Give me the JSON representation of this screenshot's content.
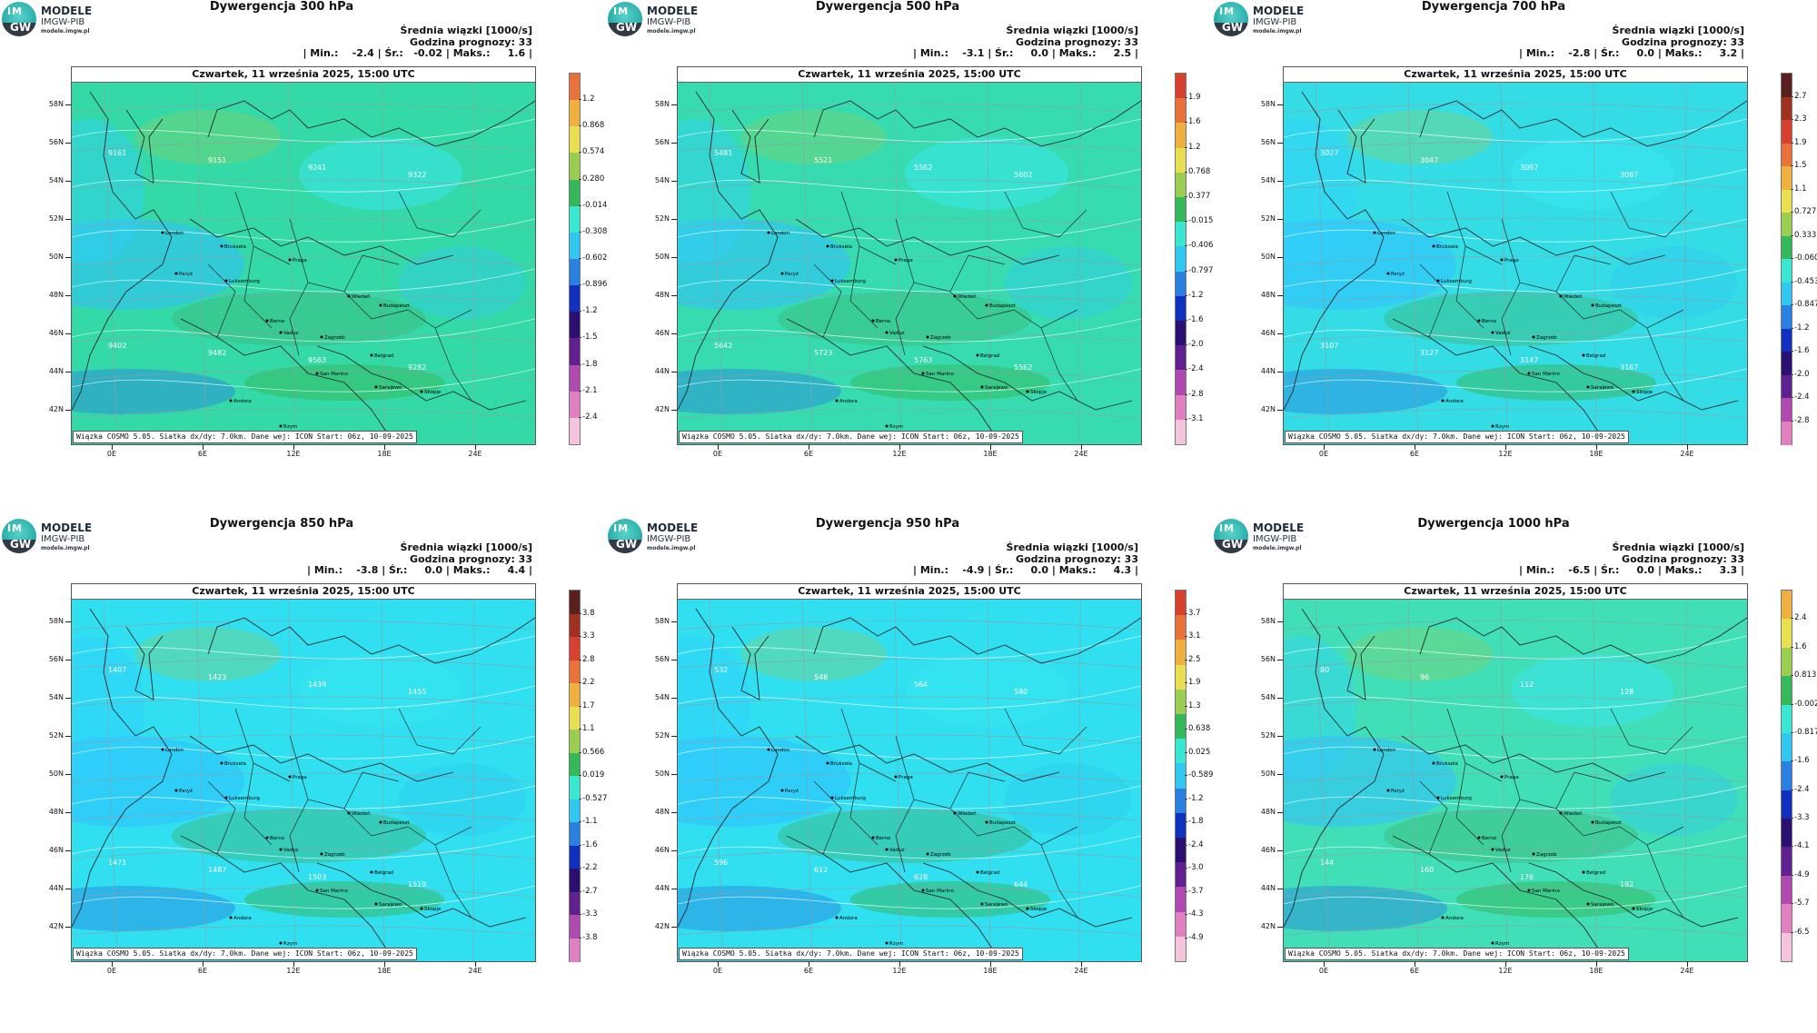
{
  "logo": {
    "title": "MODELE",
    "subtitle": "IMGW-PIB",
    "url": "modele.imgw.pl",
    "im": "IM",
    "gw": "GW"
  },
  "common": {
    "stats_header": "Średnia wiązki [1000/s]",
    "forecast_hour": "Godzina prognozy: 33",
    "date": "Czwartek, 11 września 2025, 15:00 UTC",
    "footer": "Wiązka COSMO 5.05. Siatka dx/dy: 7.0km. Dane wej: ICON Start: 06z, 10-09-2025",
    "lat_labels": [
      "58N",
      "56N",
      "54N",
      "52N",
      "50N",
      "48N",
      "46N",
      "44N",
      "42N"
    ],
    "lon_labels": [
      "0E",
      "6E",
      "12E",
      "18E",
      "24E"
    ],
    "cities": [
      "London",
      "Bruksela",
      "Paryż",
      "Luksemburg",
      "Praga",
      "Wiedeń",
      "Budapeszt",
      "Berno",
      "Vaduz",
      "Zagrzeb",
      "Belgrad",
      "San Marino",
      "Sarajewo",
      "Andora",
      "Rzym",
      "Skopje"
    ]
  },
  "panels": [
    {
      "title": "Dywergencja 300 hPa",
      "stats": "| Min.:    -2.4 | Śr.:   -0.02 | Maks.:     1.6 |",
      "colorbar_labels": [
        "1.2",
        "0.868",
        "0.574",
        "0.280",
        "-0.014",
        "-0.308",
        "-0.602",
        "-0.896",
        "-1.2",
        "-1.5",
        "-1.8",
        "-2.1",
        "-2.4"
      ],
      "colorbar_colors": [
        "#e8723a",
        "#f0b040",
        "#e8e050",
        "#9acd50",
        "#34b85a",
        "#38e8d0",
        "#30c8f0",
        "#2a80e0",
        "#1030c0",
        "#2a1070",
        "#602090",
        "#b04ab0",
        "#e080c0",
        "#f4c4dc"
      ],
      "base_color": "#34d9a8",
      "iso_labels": [
        "9161",
        "9151",
        "9241",
        "9322",
        "9402",
        "9482",
        "9563",
        "9282"
      ]
    },
    {
      "title": "Dywergencja 500 hPa",
      "stats": "| Min.:    -3.1 | Śr.:     0.0 | Maks.:     2.5 |",
      "colorbar_labels": [
        "1.9",
        "1.6",
        "1.2",
        "0.768",
        "0.377",
        "-0.015",
        "-0.406",
        "-0.797",
        "-1.2",
        "-1.6",
        "-2.0",
        "-2.4",
        "-2.8",
        "-3.1"
      ],
      "colorbar_colors": [
        "#d84030",
        "#e8723a",
        "#f0b040",
        "#e8e050",
        "#9acd50",
        "#34b85a",
        "#38e8d0",
        "#30c8f0",
        "#2a80e0",
        "#1030c0",
        "#2a1070",
        "#602090",
        "#b04ab0",
        "#e080c0",
        "#f4c4dc"
      ],
      "base_color": "#36dcb0",
      "iso_labels": [
        "5481",
        "5521",
        "5562",
        "5602",
        "5642",
        "5723",
        "5763",
        "5562"
      ]
    },
    {
      "title": "Dywergencja 700 hPa",
      "stats": "| Min.:    -2.8 | Śr.:     0.0 | Maks.:     3.2 |",
      "colorbar_labels": [
        "2.7",
        "2.3",
        "1.9",
        "1.5",
        "1.1",
        "0.727",
        "0.333",
        "-0.060",
        "-0.453",
        "-0.847",
        "-1.2",
        "-1.6",
        "-2.0",
        "-2.4",
        "-2.8"
      ],
      "colorbar_colors": [
        "#5a2020",
        "#a03020",
        "#d84030",
        "#e8723a",
        "#f0b040",
        "#e8e050",
        "#9acd50",
        "#34b85a",
        "#38e8d0",
        "#30c8f0",
        "#2a80e0",
        "#1030c0",
        "#2a1070",
        "#602090",
        "#b04ab0",
        "#e080c0"
      ],
      "base_color": "#34dde6",
      "iso_labels": [
        "3027",
        "3047",
        "3067",
        "3087",
        "3107",
        "3127",
        "3147",
        "3167"
      ]
    },
    {
      "title": "Dywergencja 850 hPa",
      "stats": "| Min.:    -3.8 | Śr.:     0.0 | Maks.:     4.4 |",
      "colorbar_labels": [
        "3.8",
        "3.3",
        "2.8",
        "2.2",
        "1.7",
        "1.1",
        "0.566",
        "0.019",
        "-0.527",
        "-1.1",
        "-1.6",
        "-2.2",
        "-2.7",
        "-3.3",
        "-3.8"
      ],
      "colorbar_colors": [
        "#5a2020",
        "#a03020",
        "#d84030",
        "#e8723a",
        "#f0b040",
        "#e8e050",
        "#9acd50",
        "#34b85a",
        "#38e8d0",
        "#30c8f0",
        "#2a80e0",
        "#1030c0",
        "#2a1070",
        "#602090",
        "#b04ab0",
        "#e080c0"
      ],
      "base_color": "#30dff0",
      "iso_labels": [
        "1407",
        "1423",
        "1439",
        "1455",
        "1471",
        "1487",
        "1503",
        "1519"
      ]
    },
    {
      "title": "Dywergencja 950 hPa",
      "stats": "| Min.:    -4.9 | Śr.:     0.0 | Maks.:     4.3 |",
      "colorbar_labels": [
        "3.7",
        "3.1",
        "2.5",
        "1.9",
        "1.3",
        "0.638",
        "0.025",
        "-0.589",
        "-1.2",
        "-1.8",
        "-2.4",
        "-3.0",
        "-3.7",
        "-4.3",
        "-4.9"
      ],
      "colorbar_colors": [
        "#d84030",
        "#e8723a",
        "#f0b040",
        "#e8e050",
        "#9acd50",
        "#34b85a",
        "#38e8d0",
        "#30c8f0",
        "#2a80e0",
        "#1030c0",
        "#2a1070",
        "#602090",
        "#b04ab0",
        "#e080c0",
        "#f4c4dc"
      ],
      "base_color": "#30dff0",
      "iso_labels": [
        "532",
        "548",
        "564",
        "580",
        "596",
        "612",
        "628",
        "644"
      ]
    },
    {
      "title": "Dywergencja 1000 hPa",
      "stats": "| Min.:    -6.5 | Śr.:     0.0 | Maks.:     3.3 |",
      "colorbar_labels": [
        "2.4",
        "1.6",
        "0.813",
        "-0.002",
        "-0.817",
        "-1.6",
        "-2.4",
        "-3.3",
        "-4.1",
        "-4.9",
        "-5.7",
        "-6.5"
      ],
      "colorbar_colors": [
        "#f0b040",
        "#e8e050",
        "#9acd50",
        "#34b85a",
        "#38e8d0",
        "#30c8f0",
        "#2a80e0",
        "#1030c0",
        "#2a1070",
        "#602090",
        "#b04ab0",
        "#e080c0",
        "#f4c4dc"
      ],
      "base_color": "#40dfb8",
      "iso_labels": [
        "80",
        "96",
        "112",
        "128",
        "144",
        "160",
        "176",
        "192"
      ]
    }
  ]
}
